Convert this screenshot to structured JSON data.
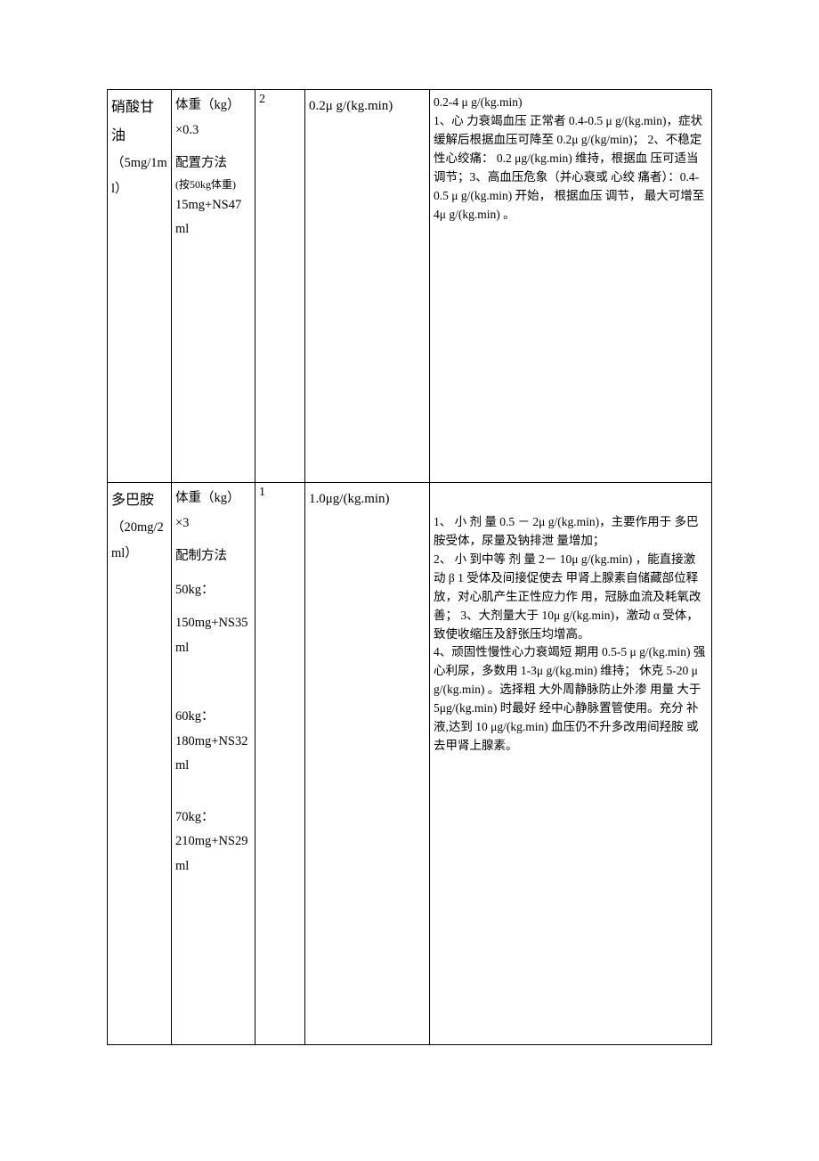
{
  "rows": [
    {
      "drug_name": "硝酸甘油",
      "drug_spec": "（5mg/1ml）",
      "prep_formula": "体重（kg）×0.3",
      "prep_method_label": "配置方法",
      "prep_note": "(按50kg体重)",
      "prep_detail": "15mg+NS47ml",
      "col3": "2",
      "col4": "0.2μ g/(kg.min)",
      "desc_range": "0.2-4 μ g/(kg.min)",
      "desc_body": "1、心 力衰竭血压 正常者 0.4-0.5 μ g/(kg.min)，症状 缓解后根据血压可降至 0.2μ g/(kg/min)； 2、不稳定性心绞痛：  0.2 μg/(kg.min) 维持，根据血 压可适当调节；3、高血压危象（并心衰或 心绞 痛者）：0.4-0.5 μ g/(kg.min) 开始，  根据血压 调节，  最大可增至  4μ g/(kg.min) 。"
    },
    {
      "drug_name": "多巴胺",
      "drug_spec": "（20mg/2ml）",
      "prep_formula": "体重（kg）×3",
      "prep_method_label": "配制方法",
      "prep_groups": [
        {
          "weight": "50kg：",
          "mix": "150mg+NS35ml"
        },
        {
          "weight": "60kg：",
          "mix": "180mg+NS32ml"
        },
        {
          "weight": "70kg：",
          "mix": "210mg+NS29ml"
        }
      ],
      "col3": "1",
      "col4": "1.0μg/(kg.min)",
      "desc_body": "1、 小 剂 量 0.5 － 2μ g/(kg.min)，主要作用于 多巴胺受体，尿量及钠排泄 量增加；\n2、 小 到中等 剂 量 2－ 10μ g/(kg.min) ，能直接激 动 β 1 受体及间接促使去 甲肾上腺素自储藏部位释 放，对心肌产生正性应力作 用，冠脉血流及耗氧改善； 3、大剂量大于 10μ g/(kg.min)，激动 α 受体，致使收缩压及舒张压均增高。\n4、顽固性慢性心力衰竭短 期用 0.5-5 μ g/(kg.min) 强 心利尿，多数用 1-3μ g/(kg.min) 维持； 休克 5-20 μ g/(kg.min) 。选择粗 大外周静脉防止外渗 用量 大于 5μg/(kg.min) 时最好 经中心静脉置管使用。充分 补液,达到  10 μg/(kg.min) 血压仍不升多改用间羟胺 或去甲肾上腺素。"
    }
  ]
}
